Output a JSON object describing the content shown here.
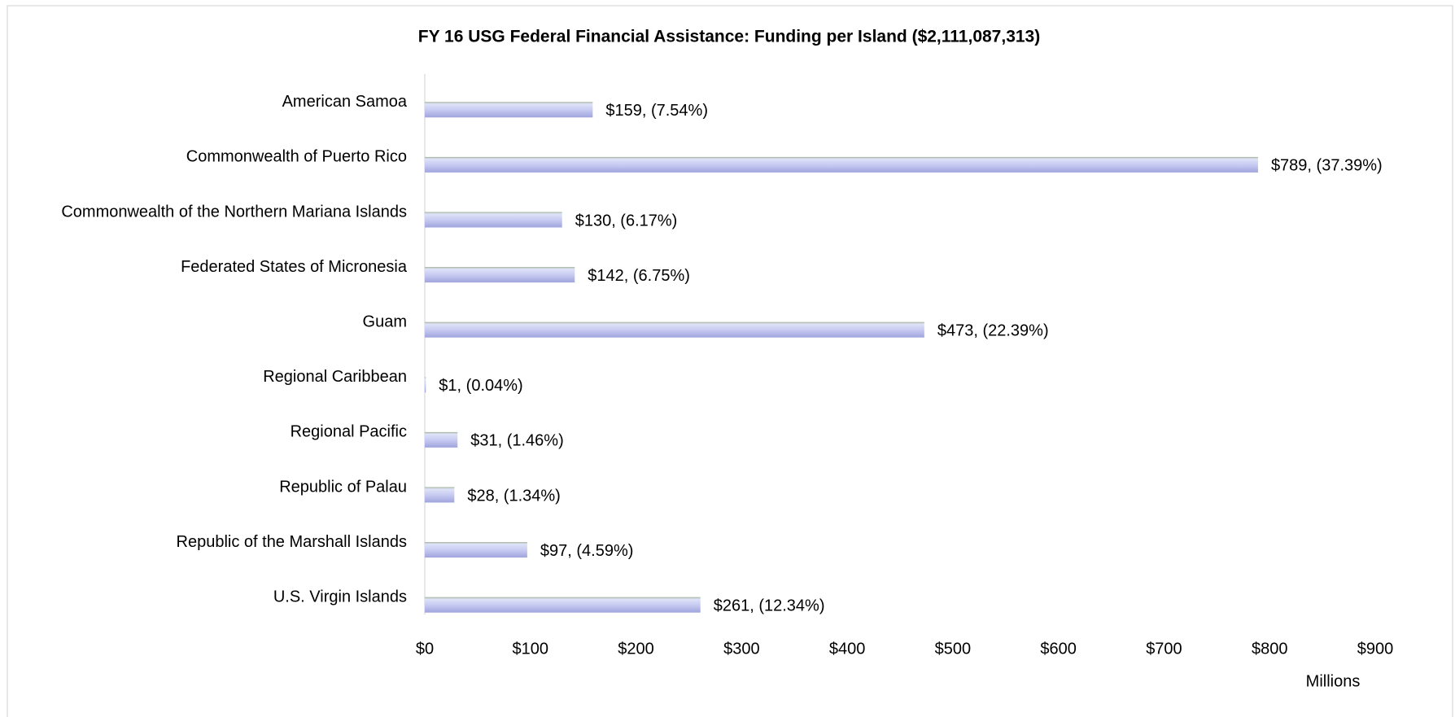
{
  "chart_data": {
    "type": "bar",
    "orientation": "horizontal",
    "title": "FY 16 USG Federal Financial Assistance: Funding per Island ($2,111,087,313)",
    "categories": [
      "American Samoa",
      "Commonwealth of Puerto Rico",
      "Commonwealth of the Northern Mariana Islands",
      "Federated States of Micronesia",
      "Guam",
      "Regional Caribbean",
      "Regional Pacific",
      "Republic of Palau",
      "Republic of the Marshall Islands",
      "U.S. Virgin Islands"
    ],
    "values": [
      159,
      789,
      130,
      142,
      473,
      1,
      31,
      28,
      97,
      261
    ],
    "value_labels": [
      "$159, (7.54%)",
      "$789, (37.39%)",
      "$130, (6.17%)",
      "$142, (6.75%)",
      "$473, (22.39%)",
      "$1, (0.04%)",
      "$31, (1.46%)",
      "$28, (1.34%)",
      "$97, (4.59%)",
      "$261, (12.34%)"
    ],
    "color": "#b8bdec",
    "x_label": "Millions",
    "xlim": [
      0,
      900
    ],
    "xticks": [
      {
        "value": 0,
        "label": "$0"
      },
      {
        "value": 100,
        "label": "$100"
      },
      {
        "value": 200,
        "label": "$200"
      },
      {
        "value": 300,
        "label": "$300"
      },
      {
        "value": 400,
        "label": "$400"
      },
      {
        "value": 500,
        "label": "$500"
      },
      {
        "value": 600,
        "label": "$600"
      },
      {
        "value": 700,
        "label": "$700"
      },
      {
        "value": 800,
        "label": "$800"
      },
      {
        "value": 900,
        "label": "$900"
      }
    ],
    "grid": false
  }
}
